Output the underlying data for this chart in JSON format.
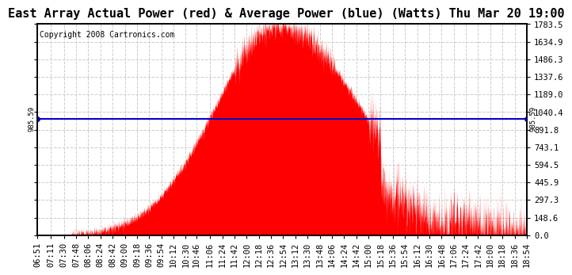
{
  "title": "East Array Actual Power (red) & Average Power (blue) (Watts) Thu Mar 20 19:00",
  "copyright": "Copyright 2008 Cartronics.com",
  "avg_power": 985.59,
  "y_max": 1783.5,
  "y_min": 0.0,
  "y_ticks": [
    0.0,
    148.6,
    297.3,
    445.9,
    594.5,
    743.1,
    891.8,
    1040.4,
    1189.0,
    1337.6,
    1486.3,
    1634.9,
    1783.5
  ],
  "x_labels": [
    "06:51",
    "07:11",
    "07:30",
    "07:48",
    "08:06",
    "08:24",
    "08:42",
    "09:00",
    "09:18",
    "09:36",
    "09:54",
    "10:12",
    "10:30",
    "10:46",
    "11:06",
    "11:24",
    "11:42",
    "12:00",
    "12:18",
    "12:36",
    "12:54",
    "13:12",
    "13:30",
    "13:48",
    "14:06",
    "14:24",
    "14:42",
    "15:00",
    "15:18",
    "15:36",
    "15:54",
    "16:12",
    "16:30",
    "16:48",
    "17:06",
    "17:24",
    "17:42",
    "18:00",
    "18:18",
    "18:36",
    "18:54"
  ],
  "peak_power": 1783.5,
  "avg_label": "985.59",
  "title_fontsize": 11,
  "copyright_fontsize": 7,
  "tick_fontsize": 7.5,
  "bg_color": "#ffffff",
  "plot_bg_color": "#ffffff",
  "grid_color": "#cccccc",
  "fill_color": "#ff0000",
  "line_color": "#0000cc",
  "border_color": "#000000",
  "peak_time": "12:48",
  "sigma_rise": 95,
  "sigma_fall": 120
}
